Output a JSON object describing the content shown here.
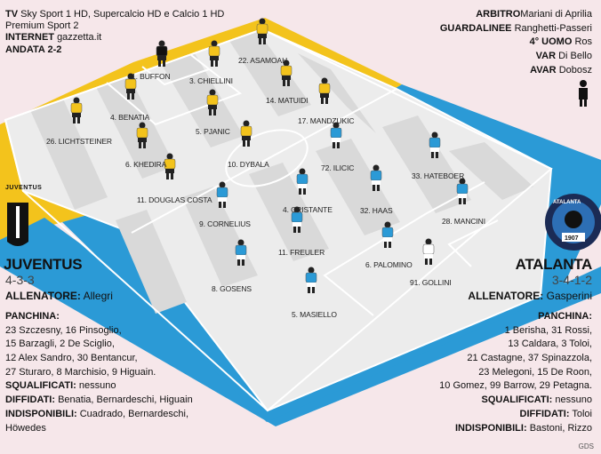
{
  "header_left": {
    "tv_label": "TV",
    "tv_value": "Sky Sport 1 HD, Supercalcio HD e Calcio 1 HD",
    "tv_value2": "Premium Sport 2",
    "internet_label": "INTERNET",
    "internet_value": "gazzetta.it",
    "andata": "ANDATA 2-2"
  },
  "officials": [
    {
      "role": "ARBITRO",
      "name": "Mariani di Aprilia"
    },
    {
      "role": "GUARDALINEE",
      "name": "Ranghetti-Passeri"
    },
    {
      "role": "4° UOMO",
      "name": "Ros"
    },
    {
      "role": "VAR",
      "name": "Di Bello"
    },
    {
      "role": "AVAR",
      "name": "Dobosz"
    }
  ],
  "home": {
    "team": "JUVENTUS",
    "formation": "4-3-3",
    "coach_label": "ALLENATORE:",
    "coach": "Allegri",
    "logo_text": "JUVENTUS",
    "color": "#f3c31c",
    "players": [
      {
        "label": "1. BUFFON"
      },
      {
        "label": "22. ASAMOAH"
      },
      {
        "label": "3. CHIELLINI"
      },
      {
        "label": "4. BENATIA"
      },
      {
        "label": "14. MATUIDI"
      },
      {
        "label": "5. PJANIC"
      },
      {
        "label": "17. MANDZUKIC"
      },
      {
        "label": "26. LICHTSTEINER"
      },
      {
        "label": "6. KHEDIRA"
      },
      {
        "label": "10. DYBALA"
      },
      {
        "label": "11. DOUGLAS COSTA"
      }
    ],
    "panchina_label": "PANCHINA:",
    "panchina": [
      "23 Szczesny, 16 Pinsoglio,",
      "15 Barzagli, 2 De Sciglio,",
      "12 Alex Sandro, 30 Bentancur,",
      "27 Sturaro, 8 Marchisio, 9 Higuain."
    ],
    "squalificati_label": "SQUALIFICATI:",
    "squalificati": "nessuno",
    "diffidati_label": "DIFFIDATI:",
    "diffidati": "Benatia, Bernardeschi, Higuain",
    "indisponibili_label": "INDISPONIBILI:",
    "indisponibili": [
      "Cuadrado, Bernardeschi,",
      "Höwedes"
    ]
  },
  "away": {
    "team": "ATALANTA",
    "formation": "3-4-1-2",
    "coach_label": "ALLENATORE:",
    "coach": "Gasperini",
    "logo_text": "ATALANTA",
    "logo_year": "1907",
    "color": "#2b9ad6",
    "players": [
      {
        "label": "72. ILICIC"
      },
      {
        "label": "33. HATEBOER"
      },
      {
        "label": "4. CRISTANTE"
      },
      {
        "label": "32. HAAS"
      },
      {
        "label": "9. CORNELIUS"
      },
      {
        "label": "28. MANCINI"
      },
      {
        "label": "11. FREULER"
      },
      {
        "label": "6. PALOMINO"
      },
      {
        "label": "91. GOLLINI"
      },
      {
        "label": "8. GOSENS"
      },
      {
        "label": "5. MASIELLO"
      }
    ],
    "panchina_label": "PANCHINA:",
    "panchina": [
      "1 Berisha, 31 Rossi,",
      "13 Caldara, 3 Toloi,",
      "21 Castagne, 37 Spinazzola,",
      "23 Melegoni, 15 De Roon,",
      "10 Gomez, 99 Barrow, 29 Petagna."
    ],
    "squalificati_label": "SQUALIFICATI:",
    "squalificati": "nessuno",
    "diffidati_label": "DIFFIDATI:",
    "diffidati": "Toloi",
    "indisponibili_label": "INDISPONIBILI:",
    "indisponibili": "Bastoni, Rizzo"
  },
  "credit": "GDS"
}
